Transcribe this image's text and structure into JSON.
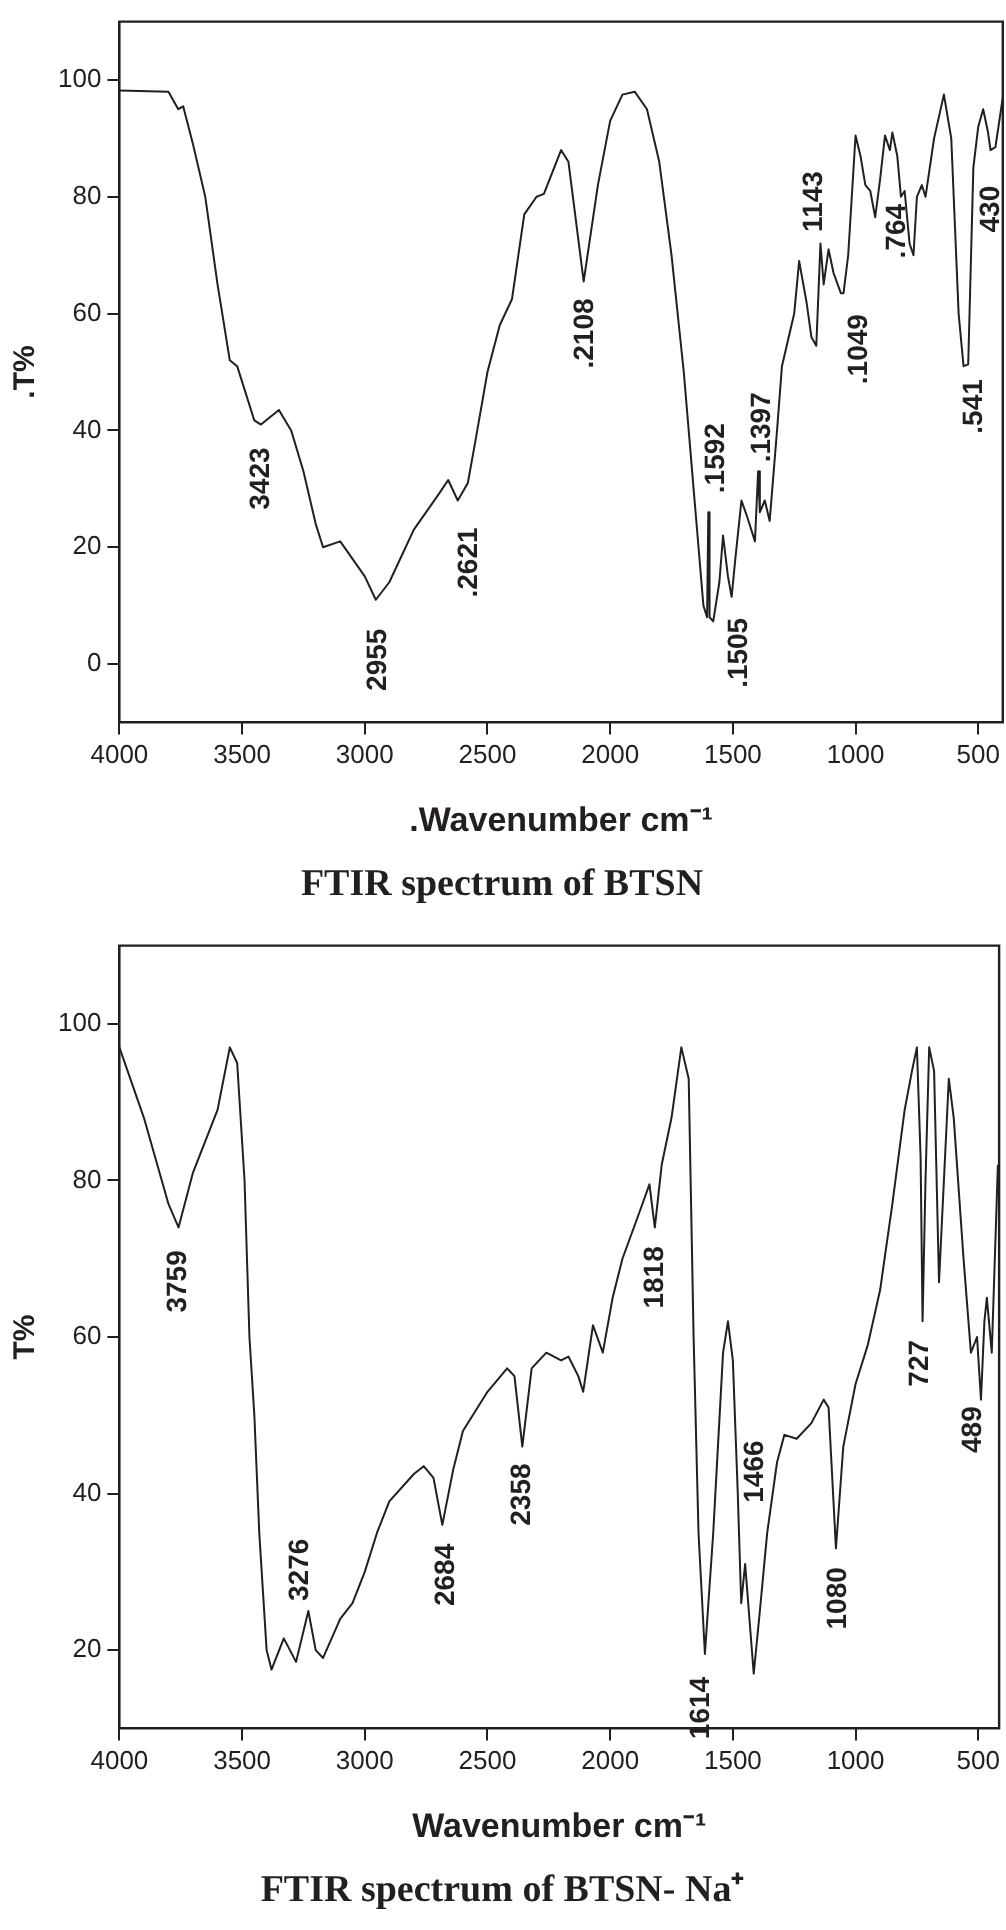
{
  "chart_data": [
    {
      "type": "line",
      "title": "FTIR spectrum of BTSN",
      "xlabel": ".Wavenumber cm⁻¹",
      "ylabel": ".T%",
      "color": "#231f20",
      "marker": "none",
      "grid": false,
      "legend": false,
      "xlim": [
        4000,
        400
      ],
      "ylim": [
        -10,
        110
      ],
      "xticks": [
        4000,
        3500,
        3000,
        2500,
        2000,
        1500,
        1000,
        500
      ],
      "yticks": [
        0,
        20,
        40,
        60,
        80,
        100
      ],
      "x": [
        4000,
        3800,
        3760,
        3740,
        3700,
        3650,
        3600,
        3550,
        3520,
        3450,
        3423,
        3350,
        3300,
        3250,
        3200,
        3170,
        3100,
        3050,
        3000,
        2955,
        2900,
        2800,
        2700,
        2660,
        2621,
        2580,
        2550,
        2500,
        2450,
        2400,
        2350,
        2300,
        2270,
        2200,
        2170,
        2108,
        2050,
        2000,
        1950,
        1900,
        1850,
        1800,
        1750,
        1700,
        1650,
        1620,
        1605,
        1600,
        1595,
        1580,
        1555,
        1540,
        1520,
        1505,
        1490,
        1465,
        1440,
        1410,
        1397,
        1390,
        1370,
        1350,
        1320,
        1300,
        1250,
        1230,
        1200,
        1180,
        1160,
        1143,
        1130,
        1110,
        1090,
        1060,
        1049,
        1030,
        1000,
        980,
        960,
        940,
        920,
        900,
        880,
        860,
        850,
        830,
        815,
        800,
        780,
        764,
        750,
        730,
        715,
        680,
        640,
        610,
        580,
        560,
        541,
        520,
        500,
        480,
        460,
        450,
        430,
        400
      ],
      "values": [
        98.2,
        98,
        95,
        95.5,
        89,
        80,
        65,
        52,
        51,
        41.7,
        41,
        43.5,
        40,
        33,
        24,
        20,
        21,
        18,
        15,
        11,
        14,
        23,
        29,
        31.5,
        28,
        31,
        38,
        50,
        58,
        62.5,
        77,
        80,
        80.5,
        88,
        86,
        65.5,
        82,
        93,
        97.5,
        98,
        95,
        86,
        70,
        50,
        25,
        10,
        8,
        26,
        8,
        7.3,
        14,
        22,
        15,
        11.5,
        18,
        28,
        25,
        21,
        33,
        26,
        28,
        24.5,
        40,
        51,
        60,
        69,
        62,
        56,
        54.5,
        72,
        65,
        71,
        67,
        63.5,
        63.5,
        70,
        90.5,
        87,
        82,
        81,
        76.5,
        83,
        90.5,
        88,
        91,
        87,
        80,
        81,
        72,
        70,
        80,
        82,
        80,
        90,
        97.5,
        90,
        60,
        51,
        51.3,
        85,
        92,
        95,
        91,
        88,
        88.5,
        97
      ],
      "annotations": [
        {
          "text": "3423",
          "x": 3423,
          "y": 41
        },
        {
          "text": "2955",
          "x": 2955,
          "y": 11
        },
        {
          "text": ".2621",
          "x": 2621,
          "y": 28
        },
        {
          "text": ".2108",
          "x": 2108,
          "y": 65.5
        },
        {
          "text": ".1592",
          "x": 1600,
          "y": 26
        },
        {
          "text": ".1505",
          "x": 1505,
          "y": 11.5
        },
        {
          "text": ".1397",
          "x": 1397,
          "y": 33
        },
        {
          "text": "1143",
          "x": 1143,
          "y": 72
        },
        {
          "text": ".1049",
          "x": 1049,
          "y": 63.5
        },
        {
          "text": ".764",
          "x": 764,
          "y": 70
        },
        {
          "text": ".541",
          "x": 541,
          "y": 51.3
        },
        {
          "text": "430",
          "x": 430,
          "y": 88.5
        }
      ]
    },
    {
      "type": "line",
      "title": "FTIR spectrum of BTSN- Na⁺",
      "xlabel": "Wavenumber cm⁻¹",
      "ylabel": "T%",
      "color": "#231f20",
      "marker": "none",
      "grid": false,
      "legend": false,
      "xlim": [
        4000,
        415
      ],
      "ylim": [
        10,
        110
      ],
      "xticks": [
        4000,
        3500,
        3000,
        2500,
        2000,
        1500,
        1000,
        500
      ],
      "yticks": [
        20,
        40,
        60,
        80,
        100
      ],
      "x": [
        4000,
        3900,
        3800,
        3759,
        3700,
        3600,
        3550,
        3520,
        3490,
        3470,
        3450,
        3430,
        3400,
        3380,
        3330,
        3280,
        3230,
        3200,
        3170,
        3100,
        3050,
        3000,
        2950,
        2900,
        2800,
        2760,
        2720,
        2684,
        2640,
        2600,
        2500,
        2420,
        2390,
        2358,
        2320,
        2260,
        2200,
        2170,
        2130,
        2110,
        2070,
        2030,
        1990,
        1950,
        1880,
        1840,
        1818,
        1790,
        1750,
        1710,
        1680,
        1660,
        1640,
        1614,
        1580,
        1540,
        1520,
        1500,
        1480,
        1466,
        1450,
        1435,
        1415,
        1390,
        1360,
        1320,
        1290,
        1240,
        1180,
        1130,
        1110,
        1080,
        1050,
        1000,
        950,
        900,
        850,
        800,
        770,
        750,
        735,
        727,
        715,
        700,
        680,
        660,
        640,
        620,
        600,
        560,
        530,
        505,
        489,
        475,
        465,
        445,
        420
      ],
      "values": [
        97,
        88,
        77,
        74,
        81,
        89,
        97,
        95,
        80,
        60,
        50,
        35,
        20,
        17.5,
        21.5,
        18.5,
        25,
        20,
        19,
        24,
        26,
        30,
        35,
        39,
        42.5,
        43.5,
        42,
        36,
        43,
        48,
        53,
        56,
        55,
        46,
        56,
        58,
        57,
        57.5,
        55,
        53,
        61.5,
        58,
        65,
        70,
        76,
        79.5,
        74,
        82,
        88,
        97,
        93,
        60,
        35,
        19.5,
        35,
        58,
        62,
        57,
        40,
        26,
        31,
        25,
        17,
        25,
        35,
        44,
        47.5,
        47,
        49,
        52,
        51,
        33,
        46,
        54,
        59,
        66,
        77,
        89,
        94,
        97,
        83,
        62,
        80,
        97,
        94,
        67,
        80,
        93,
        88,
        70,
        58,
        60,
        52,
        62,
        65,
        58,
        82
      ],
      "annotations": [
        {
          "text": "3759",
          "x": 3759,
          "y": 74
        },
        {
          "text": "3276",
          "x": 3280,
          "y": 18.5
        },
        {
          "text": "2684",
          "x": 2684,
          "y": 36
        },
        {
          "text": "2358",
          "x": 2358,
          "y": 46
        },
        {
          "text": "1818",
          "x": 1818,
          "y": 74
        },
        {
          "text": "1614",
          "x": 1614,
          "y": 19.5
        },
        {
          "text": "1466",
          "x": 1480,
          "y": 40
        },
        {
          "text": "1080",
          "x": 1080,
          "y": 33
        },
        {
          "text": "727",
          "x": 727,
          "y": 62
        },
        {
          "text": "489",
          "x": 489,
          "y": 52
        }
      ]
    }
  ]
}
